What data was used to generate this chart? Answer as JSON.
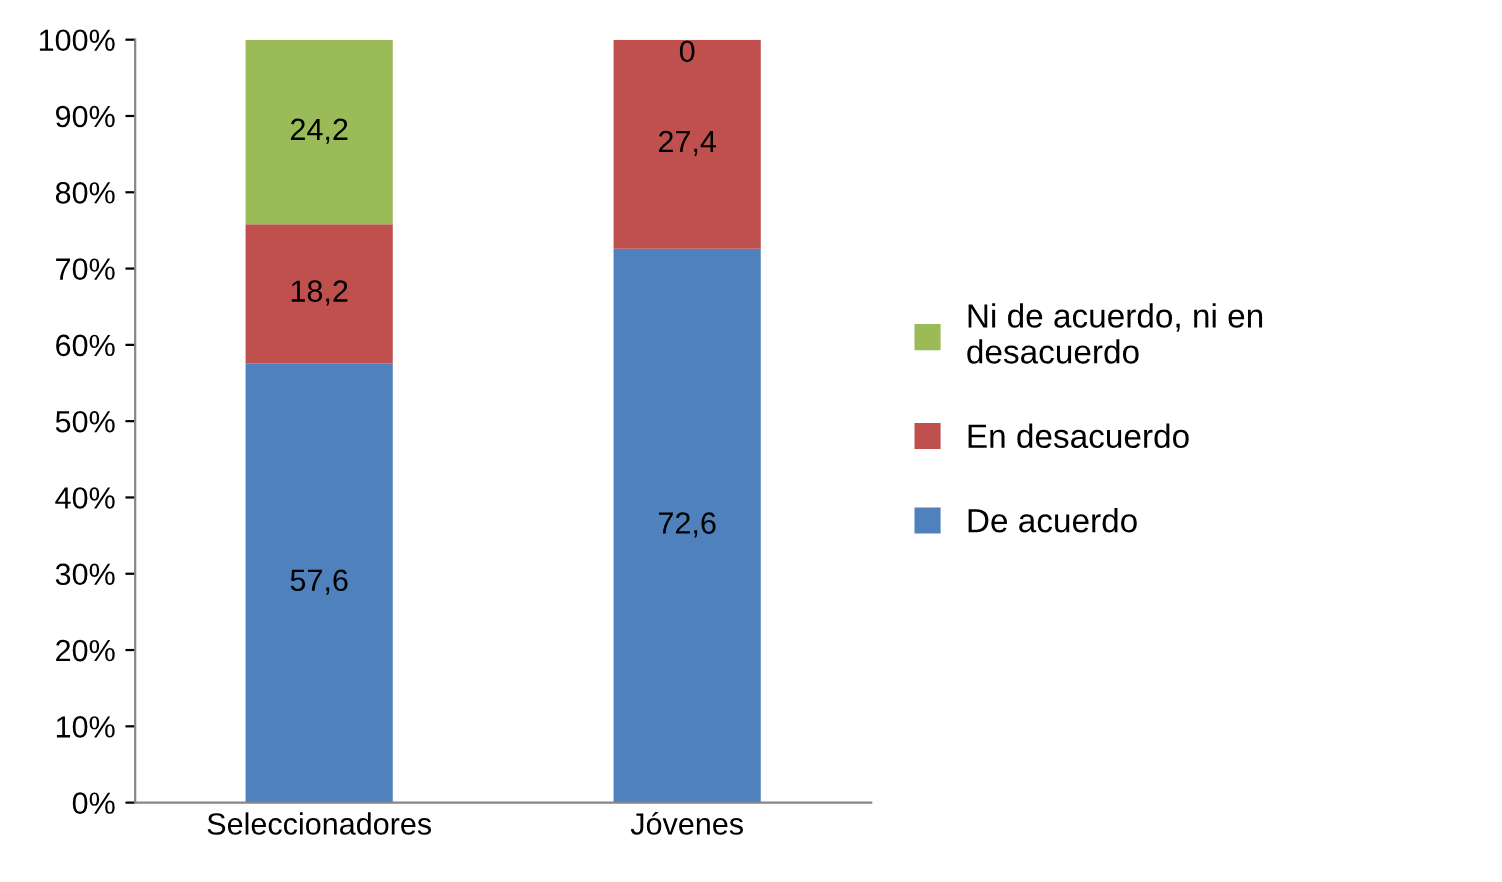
{
  "chart_data": {
    "type": "bar",
    "stacked": true,
    "categories": [
      "Seleccionadores",
      "Jóvenes"
    ],
    "series": [
      {
        "name": "De acuerdo",
        "color": "#4f81bd",
        "values": [
          57.6,
          72.6
        ],
        "value_labels": [
          "57,6",
          "72,6"
        ]
      },
      {
        "name": "En desacuerdo",
        "color": "#c0504d",
        "values": [
          18.2,
          27.4
        ],
        "value_labels": [
          "18,2",
          "27,4"
        ]
      },
      {
        "name": "Ni de acuerdo, ni en desacuerdo",
        "color": "#9bbb59",
        "values": [
          24.2,
          0
        ],
        "value_labels": [
          "24,2",
          "0"
        ]
      }
    ],
    "ylim": [
      0,
      100
    ],
    "yticks": [
      {
        "value": 0,
        "label": "0%"
      },
      {
        "value": 10,
        "label": "10%"
      },
      {
        "value": 20,
        "label": "20%"
      },
      {
        "value": 30,
        "label": "30%"
      },
      {
        "value": 40,
        "label": "40%"
      },
      {
        "value": 50,
        "label": "50%"
      },
      {
        "value": 60,
        "label": "60%"
      },
      {
        "value": 70,
        "label": "70%"
      },
      {
        "value": 80,
        "label": "80%"
      },
      {
        "value": 90,
        "label": "90%"
      },
      {
        "value": 100,
        "label": "100%"
      }
    ],
    "grid": false,
    "legend": "right"
  }
}
